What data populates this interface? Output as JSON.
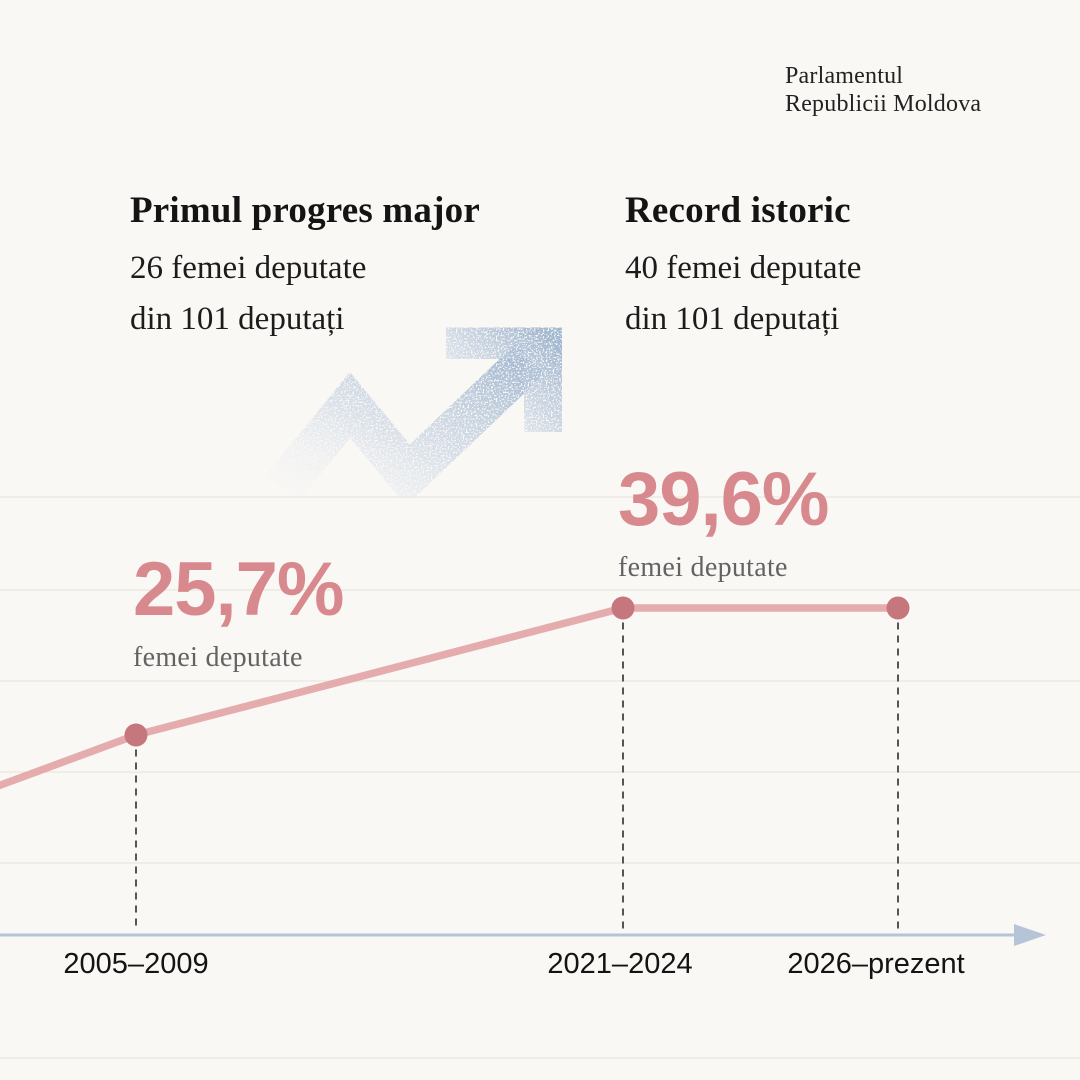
{
  "page": {
    "background": "#faf8f5"
  },
  "logo": {
    "line1": "Parlamentul",
    "line2": "Republicii Moldova"
  },
  "milestones": [
    {
      "title": "Primul progres major",
      "line1": "26 femei deputate",
      "line2": "din 101 deputați"
    },
    {
      "title": "Record istoric",
      "line1": "40 femei deputate",
      "line2": "din 101 deputați"
    }
  ],
  "trend_arrow_icon": {
    "name": "trending-up-arrow",
    "color_strong": "#a3b8d1",
    "color_mid": "#c7d3e2",
    "color_faint": "#eef1f5"
  },
  "chart_data": {
    "type": "line",
    "categories": [
      "2005–2009",
      "2021–2024",
      "2026–prezent"
    ],
    "values": [
      25.7,
      39.6,
      39.6
    ],
    "series_name": "femei deputate",
    "annotations": [
      {
        "value_label": "25,7%",
        "caption": "femei deputate"
      },
      {
        "value_label": "39,6%",
        "caption": "femei deputate"
      }
    ],
    "title": "",
    "xlabel": "",
    "ylabel": "",
    "ylim": [
      0,
      100
    ],
    "grid": true,
    "legend": "none",
    "colors": {
      "line": "#e5acae",
      "point": "#c6767d",
      "value_text": "#d8898d",
      "caption_text": "#636363",
      "axis": "#b6c4d7",
      "grid": "#ece7e1",
      "dashed": "#555555"
    }
  }
}
